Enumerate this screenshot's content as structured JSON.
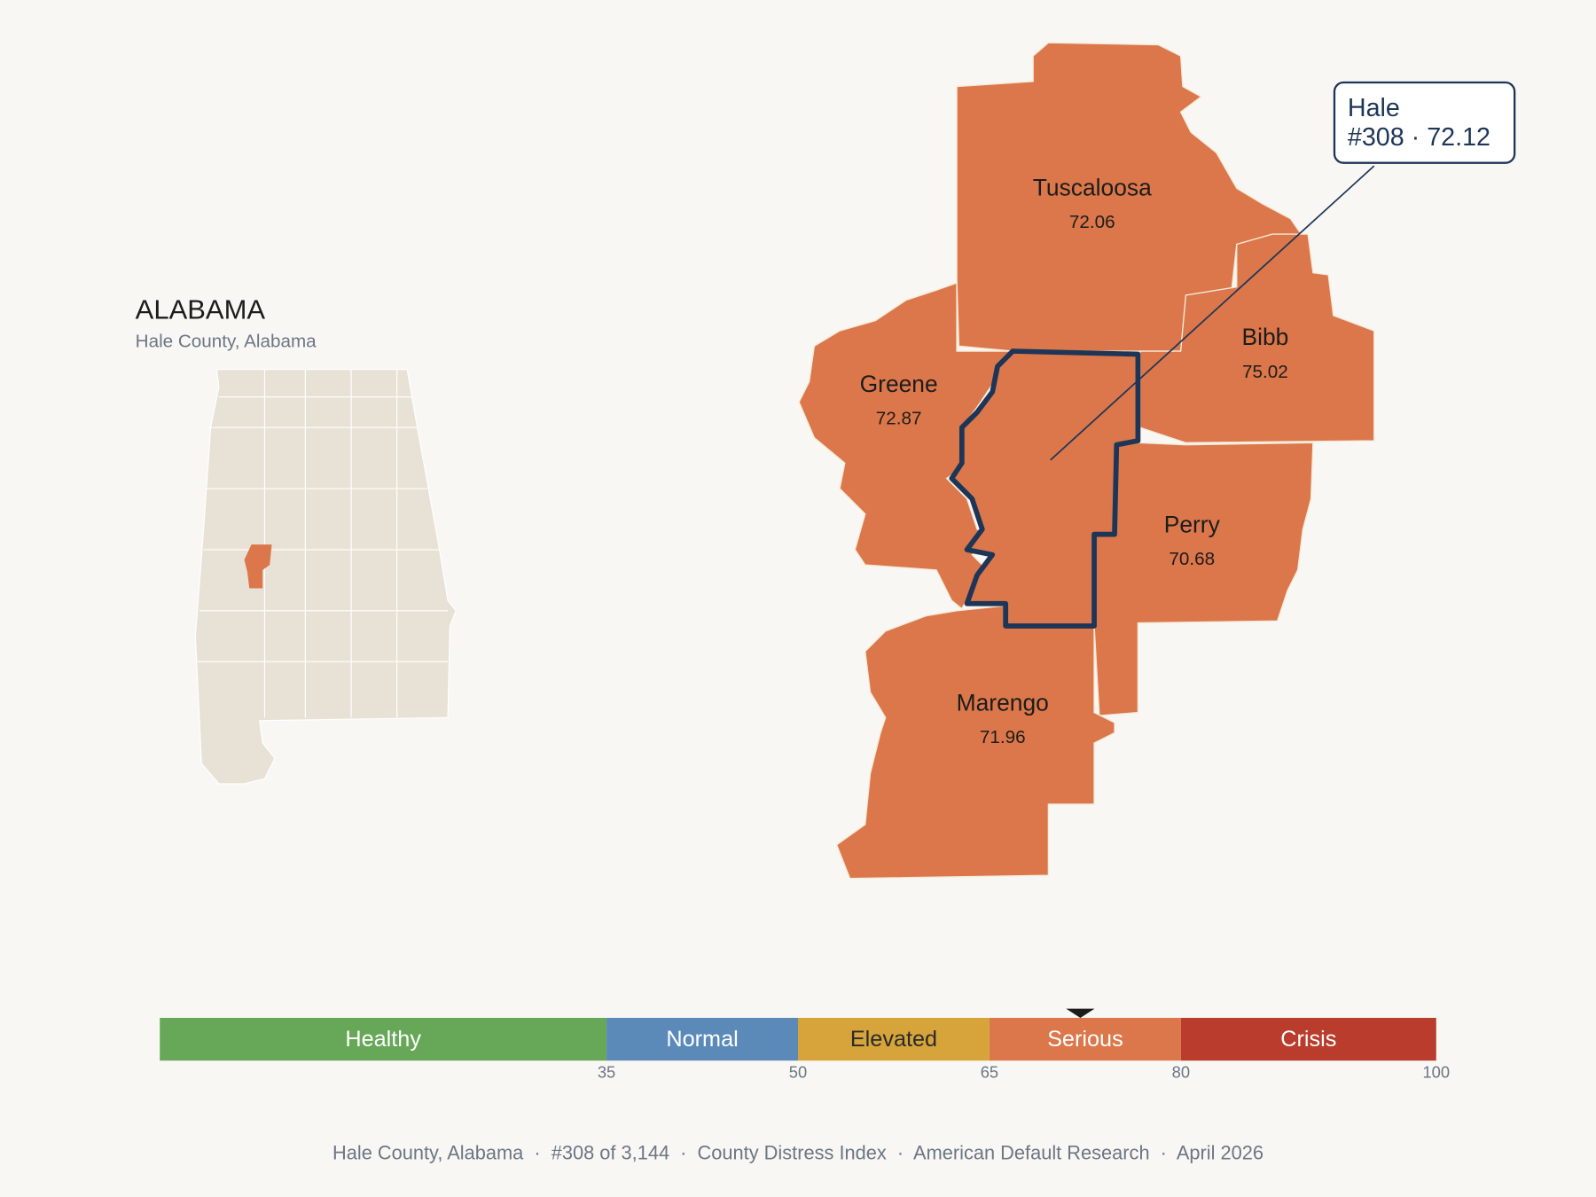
{
  "state": {
    "title": "ALABAMA",
    "subtitle": "Hale County, Alabama"
  },
  "counties": [
    {
      "name": "Tuscaloosa",
      "value": "72.06"
    },
    {
      "name": "Bibb",
      "value": "75.02"
    },
    {
      "name": "Greene",
      "value": "72.87"
    },
    {
      "name": "Perry",
      "value": "70.68"
    },
    {
      "name": "Marengo",
      "value": "71.96"
    }
  ],
  "callout": {
    "title": "Hale",
    "detail": "#308 · 72.12"
  },
  "scale": {
    "xlim": [
      0,
      100
    ],
    "marker": 72.12,
    "bands": [
      {
        "label": "Healthy",
        "to": 35,
        "color": "#67a758",
        "text_color": "#ffffff"
      },
      {
        "label": "Normal",
        "to": 50,
        "color": "#5b8ab9",
        "text_color": "#ffffff"
      },
      {
        "label": "Elevated",
        "to": 65,
        "color": "#d6a43b",
        "text_color": "#2a2a2a"
      },
      {
        "label": "Serious",
        "to": 80,
        "color": "#db774a",
        "text_color": "#ffffff"
      },
      {
        "label": "Crisis",
        "to": 100,
        "color": "#b93c2c",
        "text_color": "#ffffff"
      }
    ]
  },
  "footer": "Hale County, Alabama  ·  #308 of 3,144  ·  County Distress Index  ·  American Default Research  ·  April 2026"
}
